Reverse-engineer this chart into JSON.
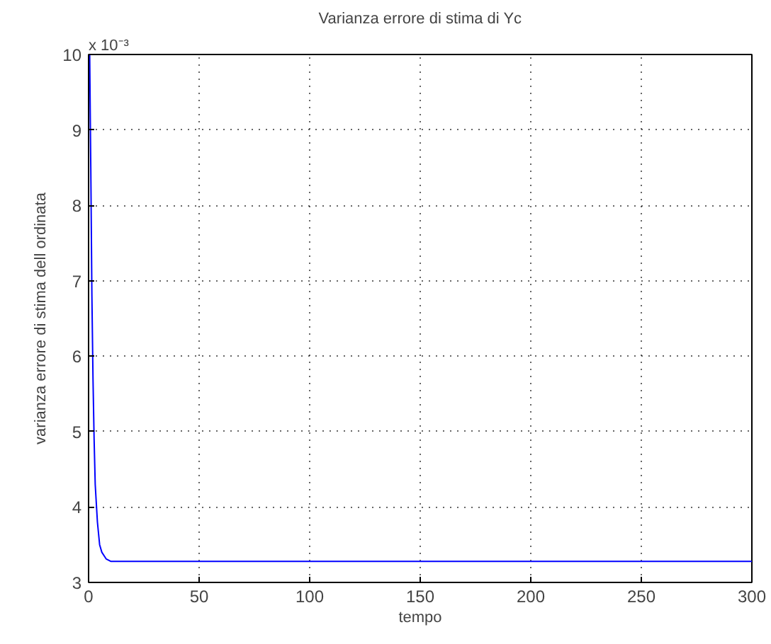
{
  "chart_data": {
    "type": "line",
    "title": "Varianza errore di stima di Yc",
    "xlabel": "tempo",
    "ylabel": "varianza errore di stima dell ordinata",
    "annotations": [
      "x 10⁻³"
    ],
    "series": [
      {
        "color": "#0000ff",
        "x": [
          0.5,
          1,
          1.5,
          2,
          2.5,
          3,
          4,
          5,
          6,
          8,
          10,
          20,
          300
        ],
        "values": [
          10.0,
          8.5,
          6.8,
          5.7,
          4.9,
          4.3,
          3.8,
          3.5,
          3.4,
          3.31,
          3.28,
          3.28,
          3.28
        ]
      }
    ],
    "xlim": [
      0,
      300
    ],
    "xticks": [
      0,
      50,
      100,
      150,
      200,
      250,
      300
    ],
    "ylim": [
      3,
      10
    ],
    "yticks": [
      3,
      4,
      5,
      6,
      7,
      8,
      9,
      10
    ],
    "grid": true,
    "line_style": "solid",
    "marker": "none"
  }
}
